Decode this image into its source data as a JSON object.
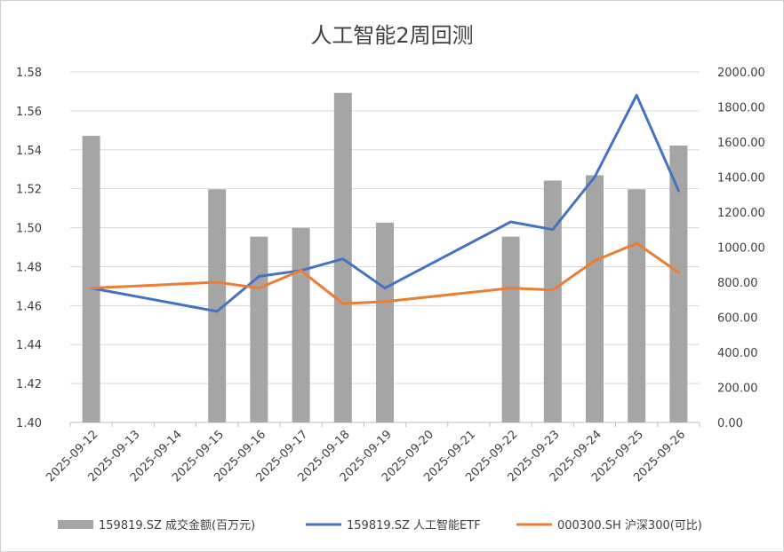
{
  "chart_data": {
    "type": "bar+line",
    "title": "人工智能2周回测",
    "categories": [
      "2025-09-12",
      "2025-09-13",
      "2025-09-14",
      "2025-09-15",
      "2025-09-16",
      "2025-09-17",
      "2025-09-18",
      "2025-09-19",
      "2025-09-20",
      "2025-09-21",
      "2025-09-22",
      "2025-09-23",
      "2025-09-24",
      "2025-09-25",
      "2025-09-26"
    ],
    "y_left": {
      "min": 1.4,
      "max": 1.58,
      "step": 0.02,
      "ticks": [
        "1.40",
        "1.42",
        "1.44",
        "1.46",
        "1.48",
        "1.50",
        "1.52",
        "1.54",
        "1.56",
        "1.58"
      ]
    },
    "y_right": {
      "min": 0,
      "max": 2000,
      "step": 200,
      "ticks": [
        "0.00",
        "200.00",
        "400.00",
        "600.00",
        "800.00",
        "1000.00",
        "1200.00",
        "1400.00",
        "1600.00",
        "1800.00",
        "2000.00"
      ]
    },
    "grid": true,
    "legend_position": "bottom",
    "series": [
      {
        "name": "159819.SZ 成交金额(百万元)",
        "kind": "bar",
        "axis": "right",
        "color": "#a5a5a5",
        "values": [
          1635,
          null,
          null,
          1330,
          1060,
          1110,
          1880,
          1140,
          null,
          null,
          1060,
          1380,
          1410,
          1330,
          1580
        ]
      },
      {
        "name": "159819.SZ 人工智能ETF",
        "kind": "line",
        "axis": "left",
        "color": "#4472c4",
        "values": [
          1.469,
          null,
          null,
          1.457,
          1.475,
          1.478,
          1.484,
          1.469,
          null,
          null,
          1.503,
          1.499,
          1.526,
          1.568,
          1.519
        ]
      },
      {
        "name": "000300.SH 沪深300(可比)",
        "kind": "line",
        "axis": "left",
        "color": "#ed7d31",
        "values": [
          1.469,
          null,
          null,
          1.472,
          1.469,
          1.478,
          1.461,
          1.462,
          null,
          null,
          1.469,
          1.468,
          1.483,
          1.492,
          1.477
        ]
      }
    ]
  }
}
